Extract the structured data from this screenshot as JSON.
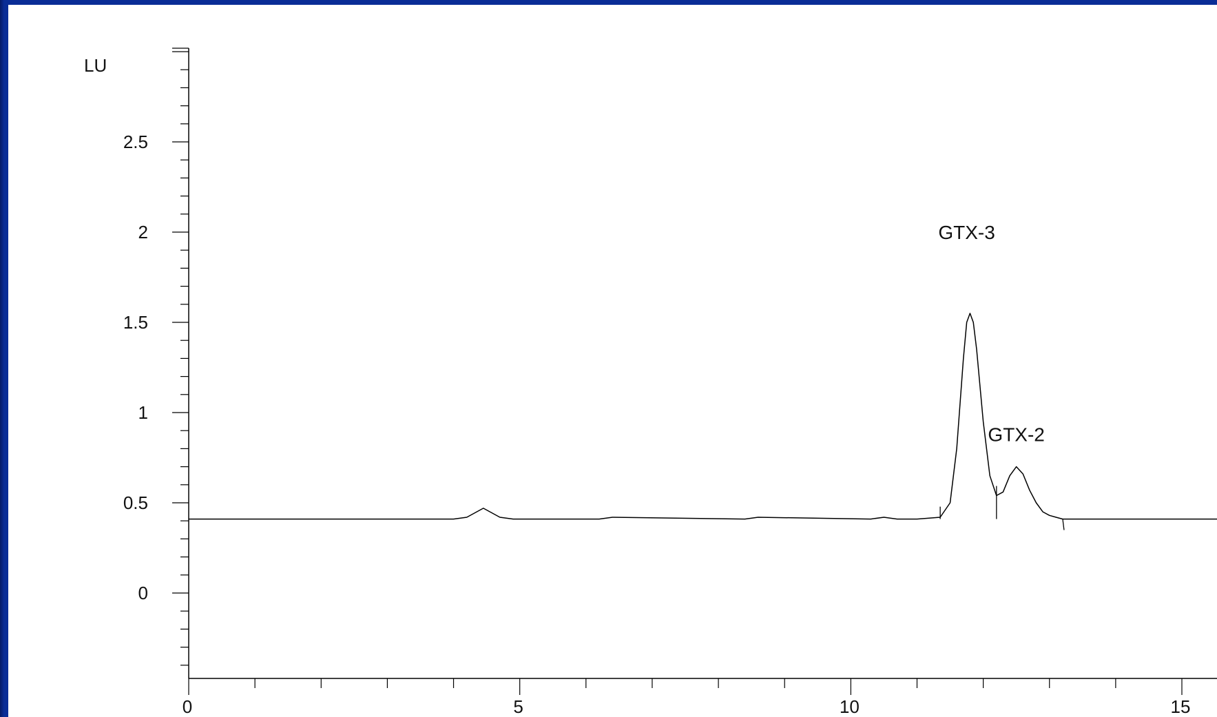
{
  "chart_data": {
    "type": "line",
    "title": "",
    "xlabel": "",
    "ylabel": "LU",
    "xlim": [
      0,
      15.6
    ],
    "ylim": [
      -0.5,
      3.0
    ],
    "x_ticks": [
      0,
      5,
      10,
      15
    ],
    "x_tick_labels": [
      "0",
      "5",
      "10",
      "15"
    ],
    "y_ticks": [
      0,
      0.5,
      1,
      1.5,
      2,
      2.5
    ],
    "y_tick_labels": [
      "0",
      "0.5",
      "1",
      "1.5",
      "2",
      "2.5"
    ],
    "grid": false,
    "baseline": 0.41,
    "series": [
      {
        "x": [
          0,
          3.0,
          4.0,
          4.2,
          4.35,
          4.45,
          4.55,
          4.7,
          4.9,
          5.2,
          6.2,
          6.4,
          8.4,
          8.6,
          10.3,
          10.5,
          10.7,
          11.0,
          11.35,
          11.5,
          11.6,
          11.7,
          11.75,
          11.8,
          11.85,
          11.9,
          12.0,
          12.1,
          12.2,
          12.3,
          12.4,
          12.5,
          12.6,
          12.7,
          12.8,
          12.9,
          13.0,
          13.1,
          13.2,
          13.3,
          14.0,
          15.6
        ],
        "y": [
          0.41,
          0.41,
          0.41,
          0.42,
          0.45,
          0.47,
          0.45,
          0.42,
          0.41,
          0.41,
          0.41,
          0.42,
          0.41,
          0.42,
          0.41,
          0.42,
          0.41,
          0.41,
          0.42,
          0.5,
          0.8,
          1.3,
          1.5,
          1.55,
          1.5,
          1.35,
          0.95,
          0.65,
          0.54,
          0.56,
          0.65,
          0.7,
          0.66,
          0.57,
          0.5,
          0.45,
          0.43,
          0.42,
          0.41,
          0.41,
          0.41,
          0.41
        ]
      }
    ],
    "annotations": [
      {
        "text": "GTX-3",
        "x": 11.75,
        "y": 2.0
      },
      {
        "text": "GTX-2",
        "x": 12.5,
        "y": 0.88
      }
    ],
    "integration_markers": [
      11.35,
      12.2,
      13.2
    ]
  }
}
